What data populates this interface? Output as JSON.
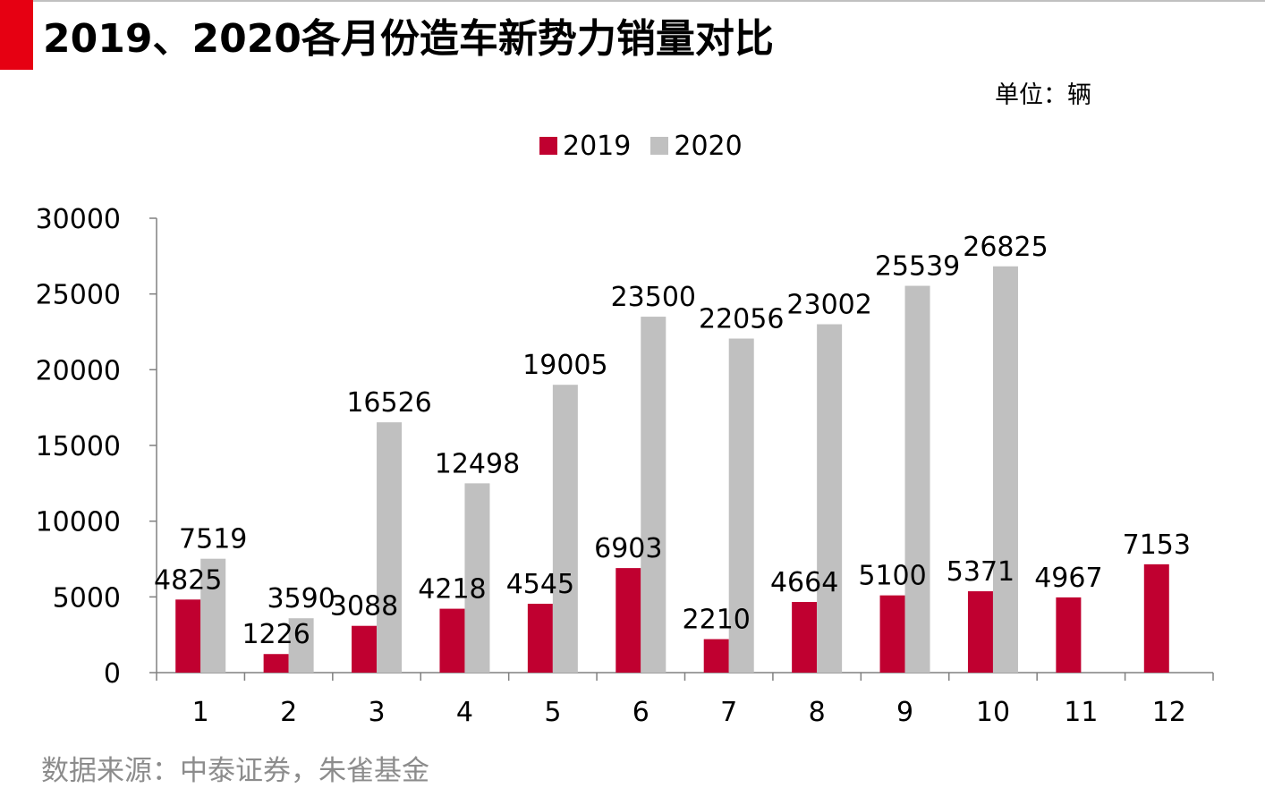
{
  "header": {
    "title": "2019、2020各月份造车新势力销量对比",
    "unit": "单位：辆"
  },
  "footer": {
    "source": "数据来源：中泰证券，朱雀基金"
  },
  "colors": {
    "accent": "#e60012",
    "series_2019": "#c00030",
    "series_2020": "#c0c0c0"
  },
  "chart_data": {
    "type": "bar",
    "title": "2019、2020各月份造车新势力销量对比",
    "xlabel": "",
    "ylabel": "",
    "unit": "单位：辆",
    "categories": [
      "1",
      "2",
      "3",
      "4",
      "5",
      "6",
      "7",
      "8",
      "9",
      "10",
      "11",
      "12"
    ],
    "series": [
      {
        "name": "2019",
        "color": "#c00030",
        "values": [
          4825,
          1226,
          3088,
          4218,
          4545,
          6903,
          2210,
          4664,
          5100,
          5371,
          4967,
          7153
        ]
      },
      {
        "name": "2020",
        "color": "#c0c0c0",
        "values": [
          7519,
          3590,
          16526,
          12498,
          19005,
          23500,
          22056,
          23002,
          25539,
          26825,
          null,
          null
        ]
      }
    ],
    "ylim": [
      0,
      30000
    ],
    "yticks": [
      "0",
      "5000",
      "10000",
      "15000",
      "20000",
      "25000",
      "30000"
    ],
    "legend": "top",
    "grid": false
  }
}
